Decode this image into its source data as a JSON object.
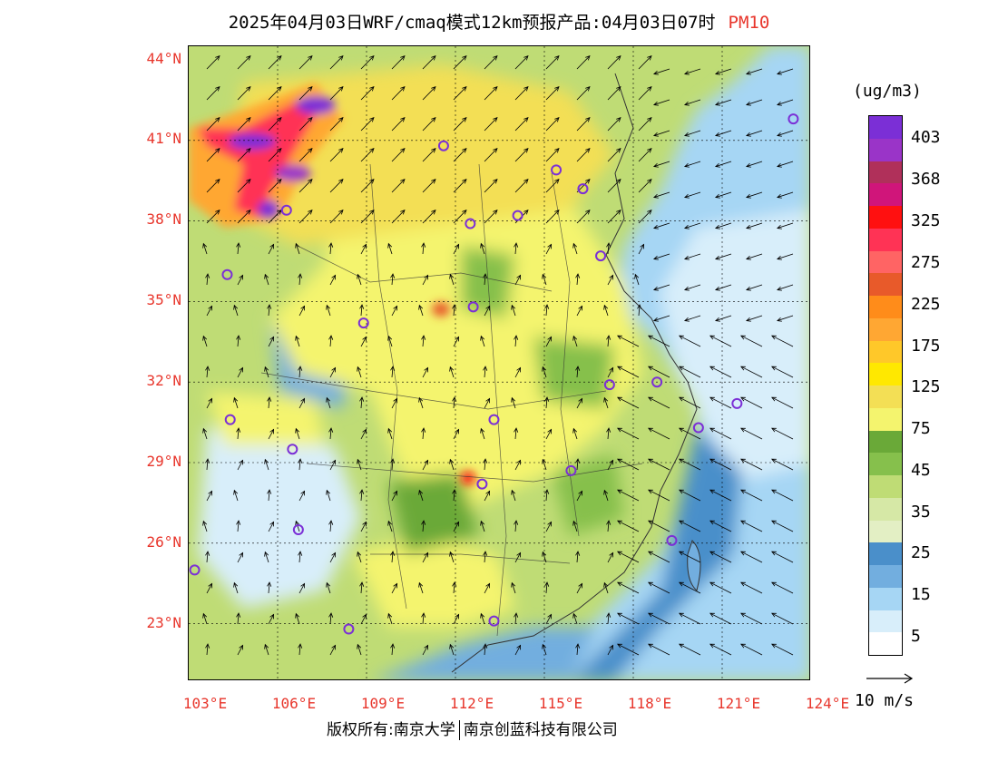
{
  "header": {
    "title": "2025年04月03日WRF/cmaq模式12km预报产品:04月03日07时",
    "species": "PM10"
  },
  "axes": {
    "lat_labels": [
      "44°N",
      "41°N",
      "38°N",
      "35°N",
      "32°N",
      "29°N",
      "26°N",
      "23°N"
    ],
    "lon_labels": [
      "103°E",
      "106°E",
      "109°E",
      "112°E",
      "115°E",
      "118°E",
      "121°E",
      "124°E"
    ]
  },
  "legend": {
    "unit": "(ug/m3)",
    "levels": [
      "403",
      "368",
      "325",
      "275",
      "225",
      "175",
      "125",
      "75",
      "45",
      "35",
      "25",
      "15",
      "5"
    ],
    "colors": [
      "#7b2fd6",
      "#9a34c8",
      "#b0305a",
      "#d0157a",
      "#ff1010",
      "#ff3355",
      "#ff6464",
      "#e85a2a",
      "#ff8c1a",
      "#ffa733",
      "#ffc829",
      "#ffe800",
      "#f3df55",
      "#f4f46e",
      "#6aa938",
      "#86c04c",
      "#bfdc75",
      "#d6e8a6",
      "#e3efc4",
      "#4a8fca",
      "#72aedf",
      "#a6d6f4",
      "#d8eefa",
      "#ffffff"
    ],
    "wind_reference": "10 m/s"
  },
  "stations": [
    {
      "lon": 103.2,
      "lat": 25.0
    },
    {
      "lon": 104.3,
      "lat": 36.0
    },
    {
      "lon": 104.4,
      "lat": 30.6
    },
    {
      "lon": 106.3,
      "lat": 38.4
    },
    {
      "lon": 106.5,
      "lat": 29.5
    },
    {
      "lon": 106.7,
      "lat": 26.5
    },
    {
      "lon": 108.4,
      "lat": 22.8
    },
    {
      "lon": 108.9,
      "lat": 34.2
    },
    {
      "lon": 111.6,
      "lat": 40.8
    },
    {
      "lon": 112.5,
      "lat": 37.9
    },
    {
      "lon": 112.6,
      "lat": 34.8
    },
    {
      "lon": 112.9,
      "lat": 28.2
    },
    {
      "lon": 113.3,
      "lat": 30.6
    },
    {
      "lon": 113.3,
      "lat": 23.1
    },
    {
      "lon": 114.1,
      "lat": 38.2
    },
    {
      "lon": 115.4,
      "lat": 39.9
    },
    {
      "lon": 116.3,
      "lat": 39.2
    },
    {
      "lon": 116.9,
      "lat": 36.7
    },
    {
      "lon": 115.9,
      "lat": 28.7
    },
    {
      "lon": 117.2,
      "lat": 31.9
    },
    {
      "lon": 118.8,
      "lat": 32.0
    },
    {
      "lon": 119.3,
      "lat": 26.1
    },
    {
      "lon": 120.2,
      "lat": 30.3
    },
    {
      "lon": 121.5,
      "lat": 31.2
    },
    {
      "lon": 123.4,
      "lat": 41.8
    }
  ],
  "copyright": {
    "text1": "版权所有:南京大学",
    "text2": "南京创蓝科技有限公司"
  }
}
